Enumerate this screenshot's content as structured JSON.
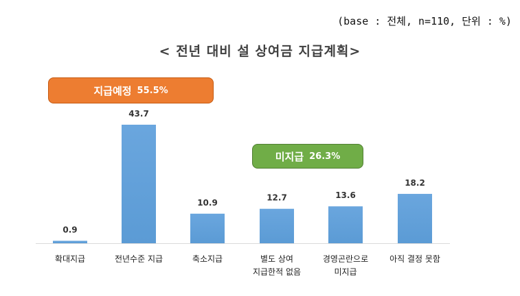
{
  "base_note": "(base : 전체, n=110, 단위 : %)",
  "title": "< 전년 대비 설 상여금 지급계획>",
  "badges": {
    "paid": {
      "label": "지급예정",
      "value": "55.5%",
      "color": "#ed7d31"
    },
    "unpaid": {
      "label": "미지급",
      "value": "26.3%",
      "color": "#70ad47"
    }
  },
  "chart_data": {
    "type": "bar",
    "title": "< 전년 대비 설 상여금 지급계획>",
    "categories": [
      [
        "확대지급"
      ],
      [
        "전년수준 지급"
      ],
      [
        "축소지급"
      ],
      [
        "별도 상여",
        "지급한적 없음"
      ],
      [
        "경영곤란으로",
        "미지급"
      ],
      [
        "아직 결정 못함"
      ]
    ],
    "values": [
      0.9,
      43.7,
      10.9,
      12.7,
      13.6,
      18.2
    ],
    "value_labels": [
      "0.9",
      "43.7",
      "10.9",
      "12.7",
      "13.6",
      "18.2"
    ],
    "bar_color": "#5b9bd5",
    "ylim": [
      0,
      43.7
    ],
    "grid": false,
    "legend": "none"
  }
}
